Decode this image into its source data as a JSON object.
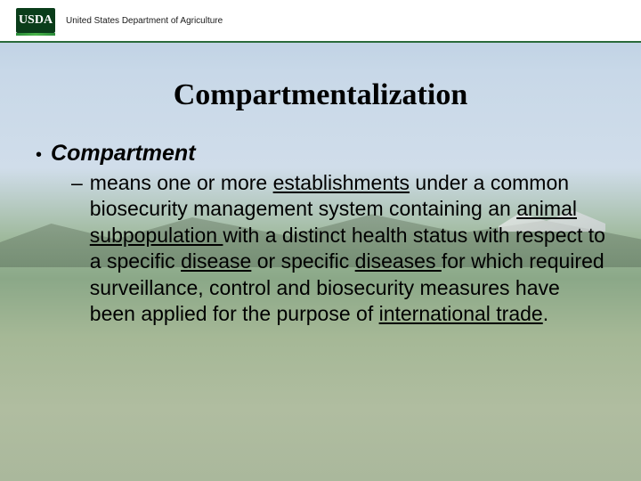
{
  "header": {
    "logo_text": "USDA",
    "department": "United States Department of Agriculture"
  },
  "slide": {
    "title": "Compartmentalization",
    "term": "Compartment",
    "definition_parts": {
      "p1": "means one or more ",
      "u1": "establishments",
      "p2": " under a common biosecurity management system containing an ",
      "u2": "animal",
      "sp1": " ",
      "u3": "subpopulation ",
      "p3": "with a distinct health status with respect to a specific ",
      "u4": "disease",
      "p4": " or specific ",
      "u5": "diseases ",
      "p5": "for which required surveillance, control and biosecurity measures have been applied for the purpose of ",
      "u6": "international trade",
      "p6": "."
    }
  },
  "colors": {
    "header_border": "#2a6b3a",
    "logo_bg": "#0a3d1a",
    "text": "#000000"
  }
}
